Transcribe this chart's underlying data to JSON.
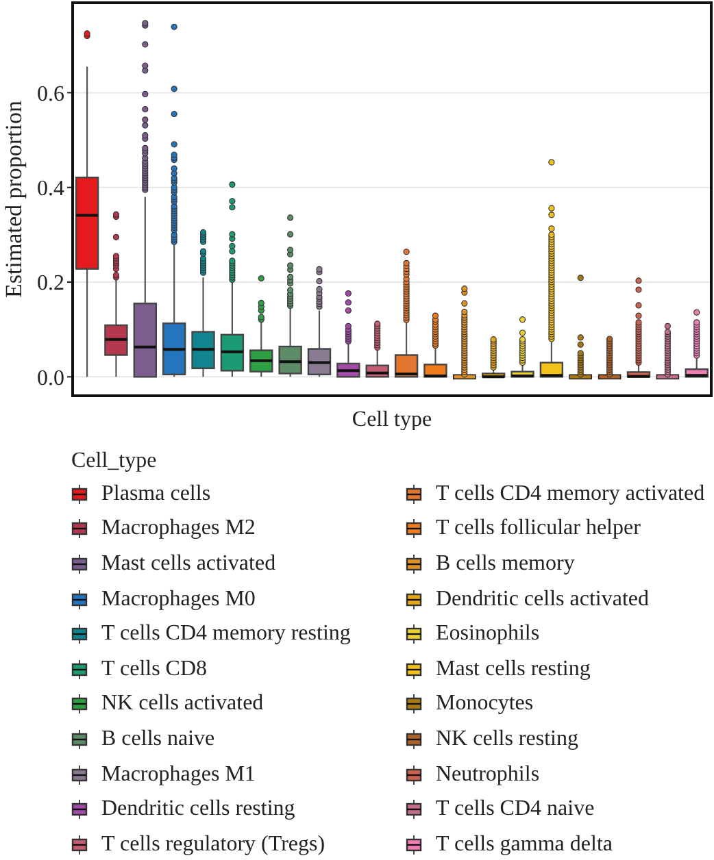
{
  "chart_data": {
    "type": "box",
    "xlabel": "Cell type",
    "ylabel": "Estimated proportion",
    "legend_title": "Cell_type",
    "categories": [
      null,
      null,
      null,
      null,
      null,
      null,
      null,
      null,
      null,
      null,
      null,
      null,
      null,
      null,
      null,
      null,
      null,
      null,
      null,
      null,
      null,
      null
    ],
    "series": [
      {
        "name": "Plasma cells",
        "color": "#e41a1c",
        "boxes": [
          {
            "low": 0,
            "q1": 0.228,
            "median": 0.341,
            "q3": 0.421,
            "high": 0.655,
            "outliers": [
              0.72,
              0.725
            ]
          },
          null,
          null,
          null,
          null,
          null,
          null,
          null,
          null,
          null,
          null,
          null,
          null,
          null,
          null,
          null,
          null,
          null,
          null,
          null,
          null,
          null
        ]
      },
      {
        "name": "Macrophages M2",
        "color": "#b5384f",
        "boxes": [
          null,
          {
            "low": 0,
            "q1": 0.046,
            "median": 0.079,
            "q3": 0.109,
            "high": 0.205,
            "outliers": [
              0.21,
              0.215,
              0.228,
              0.235,
              0.24,
              0.245,
              0.25,
              0.255,
              0.295,
              0.338,
              0.343
            ]
          },
          null,
          null,
          null,
          null,
          null,
          null,
          null,
          null,
          null,
          null,
          null,
          null,
          null,
          null,
          null,
          null,
          null,
          null,
          null,
          null
        ]
      },
      {
        "name": "Mast cells activated",
        "color": "#7b5e8e",
        "boxes": [
          null,
          null,
          {
            "low": 0,
            "q1": 0,
            "median": 0.063,
            "q3": 0.155,
            "high": 0.38,
            "outliers": [
              0.395,
              0.4,
              0.405,
              0.41,
              0.415,
              0.42,
              0.425,
              0.43,
              0.435,
              0.44,
              0.445,
              0.45,
              0.455,
              0.462,
              0.472,
              0.478,
              0.483,
              0.503,
              0.51,
              0.531,
              0.543,
              0.565,
              0.597,
              0.647,
              0.657,
              0.702,
              0.742,
              0.747
            ]
          },
          null,
          null,
          null,
          null,
          null,
          null,
          null,
          null,
          null,
          null,
          null,
          null,
          null,
          null,
          null,
          null,
          null,
          null,
          null
        ]
      },
      {
        "name": "Macrophages M0",
        "color": "#2475bd",
        "boxes": [
          null,
          null,
          null,
          {
            "low": 0,
            "q1": 0.005,
            "median": 0.058,
            "q3": 0.113,
            "high": 0.28,
            "outliers": [
              0.285,
              0.29,
              0.295,
              0.3,
              0.31,
              0.315,
              0.32,
              0.325,
              0.33,
              0.335,
              0.34,
              0.345,
              0.35,
              0.355,
              0.36,
              0.37,
              0.375,
              0.38,
              0.39,
              0.395,
              0.4,
              0.41,
              0.415,
              0.42,
              0.43,
              0.44,
              0.458,
              0.463,
              0.469,
              0.491,
              0.555,
              0.608,
              0.739
            ]
          },
          null,
          null,
          null,
          null,
          null,
          null,
          null,
          null,
          null,
          null,
          null,
          null,
          null,
          null,
          null,
          null,
          null,
          null
        ]
      },
      {
        "name": "T cells CD4 memory resting",
        "color": "#11858f",
        "boxes": [
          null,
          null,
          null,
          null,
          {
            "low": 0,
            "q1": 0.018,
            "median": 0.058,
            "q3": 0.095,
            "high": 0.21,
            "outliers": [
              0.22,
              0.225,
              0.23,
              0.235,
              0.24,
              0.245,
              0.25,
              0.26,
              0.265,
              0.285,
              0.29,
              0.295,
              0.3,
              0.305
            ]
          },
          null,
          null,
          null,
          null,
          null,
          null,
          null,
          null,
          null,
          null,
          null,
          null,
          null,
          null,
          null,
          null,
          null
        ]
      },
      {
        "name": "T cells CD8",
        "color": "#1b9b74",
        "boxes": [
          null,
          null,
          null,
          null,
          null,
          {
            "low": 0,
            "q1": 0.013,
            "median": 0.053,
            "q3": 0.089,
            "high": 0.2,
            "outliers": [
              0.205,
              0.21,
              0.215,
              0.22,
              0.225,
              0.23,
              0.235,
              0.24,
              0.245,
              0.265,
              0.276,
              0.292,
              0.301,
              0.358,
              0.371,
              0.406
            ]
          },
          null,
          null,
          null,
          null,
          null,
          null,
          null,
          null,
          null,
          null,
          null,
          null,
          null,
          null,
          null,
          null
        ]
      },
      {
        "name": "NK cells activated",
        "color": "#2ea043",
        "boxes": [
          null,
          null,
          null,
          null,
          null,
          null,
          {
            "low": 0,
            "q1": 0.011,
            "median": 0.034,
            "q3": 0.056,
            "high": 0.115,
            "outliers": [
              0.121,
              0.126,
              0.14,
              0.148,
              0.156,
              0.208
            ]
          },
          null,
          null,
          null,
          null,
          null,
          null,
          null,
          null,
          null,
          null,
          null,
          null,
          null,
          null,
          null
        ]
      },
      {
        "name": "B cells naive",
        "color": "#5d8c67",
        "boxes": [
          null,
          null,
          null,
          null,
          null,
          null,
          null,
          {
            "low": 0,
            "q1": 0.007,
            "median": 0.032,
            "q3": 0.064,
            "high": 0.147,
            "outliers": [
              0.15,
              0.155,
              0.16,
              0.165,
              0.17,
              0.175,
              0.183,
              0.197,
              0.204,
              0.211,
              0.226,
              0.235,
              0.259,
              0.268,
              0.301,
              0.336
            ]
          },
          null,
          null,
          null,
          null,
          null,
          null,
          null,
          null,
          null,
          null,
          null,
          null,
          null,
          null
        ]
      },
      {
        "name": "Macrophages M1",
        "color": "#8a7a92",
        "boxes": [
          null,
          null,
          null,
          null,
          null,
          null,
          null,
          null,
          {
            "low": 0,
            "q1": 0.005,
            "median": 0.03,
            "q3": 0.059,
            "high": 0.14,
            "outliers": [
              0.148,
              0.154,
              0.159,
              0.165,
              0.169,
              0.177,
              0.185,
              0.202,
              0.221,
              0.227
            ]
          },
          null,
          null,
          null,
          null,
          null,
          null,
          null,
          null,
          null,
          null,
          null,
          null,
          null
        ]
      },
      {
        "name": "Dendritic cells resting",
        "color": "#a24aa8",
        "boxes": [
          null,
          null,
          null,
          null,
          null,
          null,
          null,
          null,
          null,
          {
            "low": 0,
            "q1": 0,
            "median": 0.013,
            "q3": 0.028,
            "high": 0.07,
            "outliers": [
              0.075,
              0.08,
              0.085,
              0.09,
              0.095,
              0.1,
              0.107,
              0.14,
              0.157,
              0.176
            ]
          },
          null,
          null,
          null,
          null,
          null,
          null,
          null,
          null,
          null,
          null,
          null,
          null
        ]
      },
      {
        "name": "T cells regulatory (Tregs)",
        "color": "#c65d72",
        "boxes": [
          null,
          null,
          null,
          null,
          null,
          null,
          null,
          null,
          null,
          null,
          {
            "low": 0,
            "q1": 0,
            "median": 0.008,
            "q3": 0.024,
            "high": 0.06,
            "outliers": [
              0.062,
              0.067,
              0.072,
              0.077,
              0.082,
              0.087,
              0.092,
              0.097,
              0.102,
              0.107,
              0.112
            ]
          },
          null,
          null,
          null,
          null,
          null,
          null,
          null,
          null,
          null,
          null,
          null
        ]
      },
      {
        "name": "T cells CD4 memory activated",
        "color": "#e4762f",
        "boxes": [
          null,
          null,
          null,
          null,
          null,
          null,
          null,
          null,
          null,
          null,
          null,
          {
            "low": 0,
            "q1": 0,
            "median": 0.006,
            "q3": 0.046,
            "high": 0.115,
            "outliers": [
              0.12,
              0.125,
              0.13,
              0.135,
              0.14,
              0.145,
              0.15,
              0.155,
              0.16,
              0.165,
              0.17,
              0.175,
              0.18,
              0.185,
              0.19,
              0.195,
              0.2,
              0.207,
              0.216,
              0.222,
              0.228,
              0.234,
              0.24,
              0.264
            ]
          },
          null,
          null,
          null,
          null,
          null,
          null,
          null,
          null,
          null,
          null
        ]
      },
      {
        "name": "T cells follicular helper",
        "color": "#f07c1e",
        "boxes": [
          null,
          null,
          null,
          null,
          null,
          null,
          null,
          null,
          null,
          null,
          null,
          null,
          {
            "low": 0,
            "q1": 0,
            "median": 0.002,
            "q3": 0.026,
            "high": 0.065,
            "outliers": [
              0.066,
              0.07,
              0.075,
              0.08,
              0.085,
              0.09,
              0.095,
              0.1,
              0.105,
              0.11,
              0.116,
              0.121,
              0.129
            ]
          },
          null,
          null,
          null,
          null,
          null,
          null,
          null,
          null,
          null
        ]
      },
      {
        "name": "B cells memory",
        "color": "#de9226",
        "boxes": [
          null,
          null,
          null,
          null,
          null,
          null,
          null,
          null,
          null,
          null,
          null,
          null,
          null,
          {
            "low": 0,
            "q1": 0,
            "median": 0,
            "q3": 0,
            "high": 0,
            "outliers": [
              0.005,
              0.01,
              0.015,
              0.02,
              0.025,
              0.03,
              0.035,
              0.04,
              0.045,
              0.05,
              0.055,
              0.06,
              0.065,
              0.07,
              0.075,
              0.08,
              0.085,
              0.09,
              0.095,
              0.1,
              0.105,
              0.11,
              0.115,
              0.12,
              0.125,
              0.13,
              0.137,
              0.155,
              0.178,
              0.186
            ]
          },
          null,
          null,
          null,
          null,
          null,
          null,
          null,
          null
        ]
      },
      {
        "name": "Dendritic cells activated",
        "color": "#e2a81a",
        "boxes": [
          null,
          null,
          null,
          null,
          null,
          null,
          null,
          null,
          null,
          null,
          null,
          null,
          null,
          null,
          {
            "low": 0,
            "q1": 0,
            "median": 0,
            "q3": 0.007,
            "high": 0.017,
            "outliers": [
              0.02,
              0.025,
              0.03,
              0.035,
              0.04,
              0.045,
              0.05,
              0.055,
              0.06,
              0.065,
              0.07,
              0.075,
              0.079
            ]
          },
          null,
          null,
          null,
          null,
          null,
          null,
          null
        ]
      },
      {
        "name": "Eosinophils",
        "color": "#ead232",
        "boxes": [
          null,
          null,
          null,
          null,
          null,
          null,
          null,
          null,
          null,
          null,
          null,
          null,
          null,
          null,
          null,
          {
            "low": 0,
            "q1": 0,
            "median": 0.002,
            "q3": 0.011,
            "high": 0.027,
            "outliers": [
              0.03,
              0.035,
              0.04,
              0.045,
              0.05,
              0.055,
              0.06,
              0.065,
              0.07,
              0.075,
              0.079,
              0.093,
              0.121
            ]
          },
          null,
          null,
          null,
          null,
          null,
          null
        ]
      },
      {
        "name": "Mast cells resting",
        "color": "#f3c21a",
        "boxes": [
          null,
          null,
          null,
          null,
          null,
          null,
          null,
          null,
          null,
          null,
          null,
          null,
          null,
          null,
          null,
          null,
          {
            "low": 0,
            "q1": 0,
            "median": 0.003,
            "q3": 0.03,
            "high": 0.075,
            "outliers": [
              0.08,
              0.085,
              0.09,
              0.095,
              0.1,
              0.105,
              0.11,
              0.115,
              0.12,
              0.125,
              0.13,
              0.135,
              0.14,
              0.145,
              0.15,
              0.155,
              0.16,
              0.165,
              0.17,
              0.175,
              0.18,
              0.185,
              0.19,
              0.195,
              0.2,
              0.205,
              0.21,
              0.215,
              0.22,
              0.225,
              0.23,
              0.235,
              0.24,
              0.245,
              0.25,
              0.255,
              0.26,
              0.265,
              0.27,
              0.275,
              0.28,
              0.285,
              0.29,
              0.295,
              0.3,
              0.313,
              0.342,
              0.356,
              0.453
            ]
          },
          null,
          null,
          null,
          null,
          null
        ]
      },
      {
        "name": "Monocytes",
        "color": "#a97a14",
        "boxes": [
          null,
          null,
          null,
          null,
          null,
          null,
          null,
          null,
          null,
          null,
          null,
          null,
          null,
          null,
          null,
          null,
          null,
          {
            "low": 0,
            "q1": 0,
            "median": 0,
            "q3": 0,
            "high": 0,
            "outliers": [
              0.005,
              0.01,
              0.015,
              0.02,
              0.025,
              0.03,
              0.035,
              0.04,
              0.045,
              0.05,
              0.068,
              0.083,
              0.209
            ]
          },
          null,
          null,
          null,
          null
        ]
      },
      {
        "name": "NK cells resting",
        "color": "#b06128",
        "boxes": [
          null,
          null,
          null,
          null,
          null,
          null,
          null,
          null,
          null,
          null,
          null,
          null,
          null,
          null,
          null,
          null,
          null,
          null,
          {
            "low": 0,
            "q1": 0,
            "median": 0,
            "q3": 0,
            "high": 0,
            "outliers": [
              0.005,
              0.01,
              0.015,
              0.02,
              0.025,
              0.03,
              0.035,
              0.04,
              0.045,
              0.05,
              0.055,
              0.06,
              0.065,
              0.07,
              0.075,
              0.08
            ]
          },
          null,
          null,
          null
        ]
      },
      {
        "name": "Neutrophils",
        "color": "#cc6150",
        "boxes": [
          null,
          null,
          null,
          null,
          null,
          null,
          null,
          null,
          null,
          null,
          null,
          null,
          null,
          null,
          null,
          null,
          null,
          null,
          null,
          {
            "low": 0,
            "q1": 0,
            "median": 0.001,
            "q3": 0.01,
            "high": 0.025,
            "outliers": [
              0.03,
              0.035,
              0.04,
              0.045,
              0.05,
              0.055,
              0.06,
              0.065,
              0.07,
              0.075,
              0.08,
              0.085,
              0.09,
              0.095,
              0.1,
              0.105,
              0.11,
              0.115,
              0.129,
              0.151,
              0.184,
              0.203
            ]
          },
          null,
          null
        ]
      },
      {
        "name": "T cells CD4 naive",
        "color": "#c46e8a",
        "boxes": [
          null,
          null,
          null,
          null,
          null,
          null,
          null,
          null,
          null,
          null,
          null,
          null,
          null,
          null,
          null,
          null,
          null,
          null,
          null,
          null,
          {
            "low": 0,
            "q1": 0,
            "median": 0,
            "q3": 0,
            "high": 0,
            "outliers": [
              0.005,
              0.01,
              0.015,
              0.02,
              0.025,
              0.03,
              0.035,
              0.04,
              0.045,
              0.05,
              0.055,
              0.06,
              0.065,
              0.07,
              0.075,
              0.08,
              0.085,
              0.09,
              0.095,
              0.107
            ]
          },
          null
        ]
      },
      {
        "name": "T cells gamma delta",
        "color": "#f07eb4",
        "boxes": [
          null,
          null,
          null,
          null,
          null,
          null,
          null,
          null,
          null,
          null,
          null,
          null,
          null,
          null,
          null,
          null,
          null,
          null,
          null,
          null,
          null,
          {
            "low": 0,
            "q1": 0,
            "median": 0.003,
            "q3": 0.016,
            "high": 0.04,
            "outliers": [
              0.045,
              0.05,
              0.055,
              0.06,
              0.065,
              0.07,
              0.075,
              0.08,
              0.085,
              0.09,
              0.095,
              0.1,
              0.105,
              0.11,
              0.115,
              0.136
            ]
          }
        ]
      }
    ],
    "ylim": [
      -0.04,
      0.79
    ],
    "yticks": [
      {
        "value": 0,
        "label": "0.0"
      },
      0.2,
      0.4,
      0.6
    ],
    "tick_labels": "y",
    "grid": true,
    "legend": "bottom"
  }
}
